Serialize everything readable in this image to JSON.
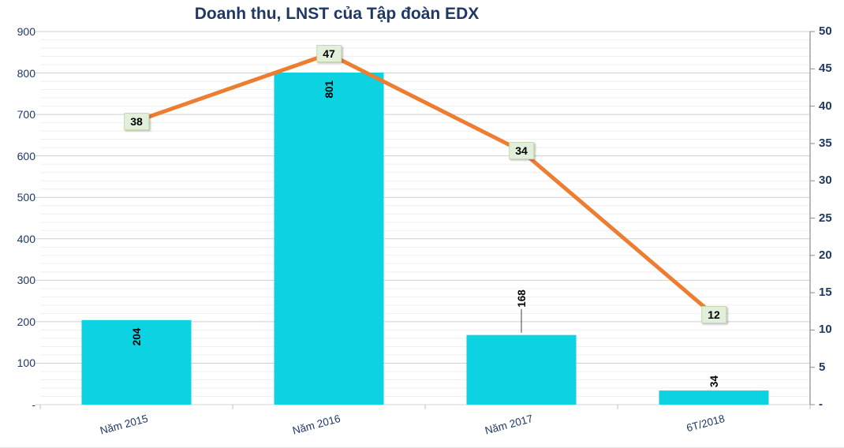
{
  "title": "Doanh thu, LNST của Tập đoàn EDX",
  "colors": {
    "background": "#FFFFFF",
    "title_text": "#1F3864",
    "axis_text": "#1F3864",
    "bar": "#0DD2E2",
    "line": "#ED7D31",
    "line_label_bg": "#E2EFDA",
    "data_label_text": "#000000",
    "major_grid": "#CFCFCF",
    "minor_grid": "#EFEFEF",
    "right_axis_line": "#8C8C8C",
    "bottom_axis_line": "#D6D6D6",
    "category_tick": "#BFBFBF",
    "leader_line": "#404040"
  },
  "chart_data": {
    "type": "combo-bar-line",
    "title": "Doanh thu, LNST của Tập đoàn EDX",
    "categories": [
      "Năm 2015",
      "Năm 2016",
      "Năm 2017",
      "6T/2018"
    ],
    "series": [
      {
        "name": "Doanh thu",
        "chart": "bar",
        "axis": "left",
        "values": [
          204,
          801,
          168,
          34
        ],
        "color": "#0DD2E2",
        "label_placements": [
          "inside",
          "inside",
          "above-leader",
          "above"
        ]
      },
      {
        "name": "LNST",
        "chart": "line",
        "axis": "right",
        "values": [
          38,
          47,
          34,
          12
        ],
        "color": "#ED7D31",
        "label_placement": "on-point"
      }
    ],
    "left_axis": {
      "min": 0,
      "max": 900,
      "major_unit": 100,
      "minor_unit": 20,
      "tick_labels": [
        "900",
        "800",
        "700",
        "600",
        "500",
        "400",
        "300",
        "200",
        "100",
        "-"
      ]
    },
    "right_axis": {
      "min": 0,
      "max": 50,
      "major_unit": 5,
      "tick_labels": [
        "50",
        "45",
        "40",
        "35",
        "30",
        "25",
        "20",
        "15",
        "10",
        "5",
        "-"
      ]
    },
    "gridlines": {
      "major": true,
      "minor": true
    },
    "legend": "none",
    "xlabel": "",
    "ylabel": ""
  }
}
